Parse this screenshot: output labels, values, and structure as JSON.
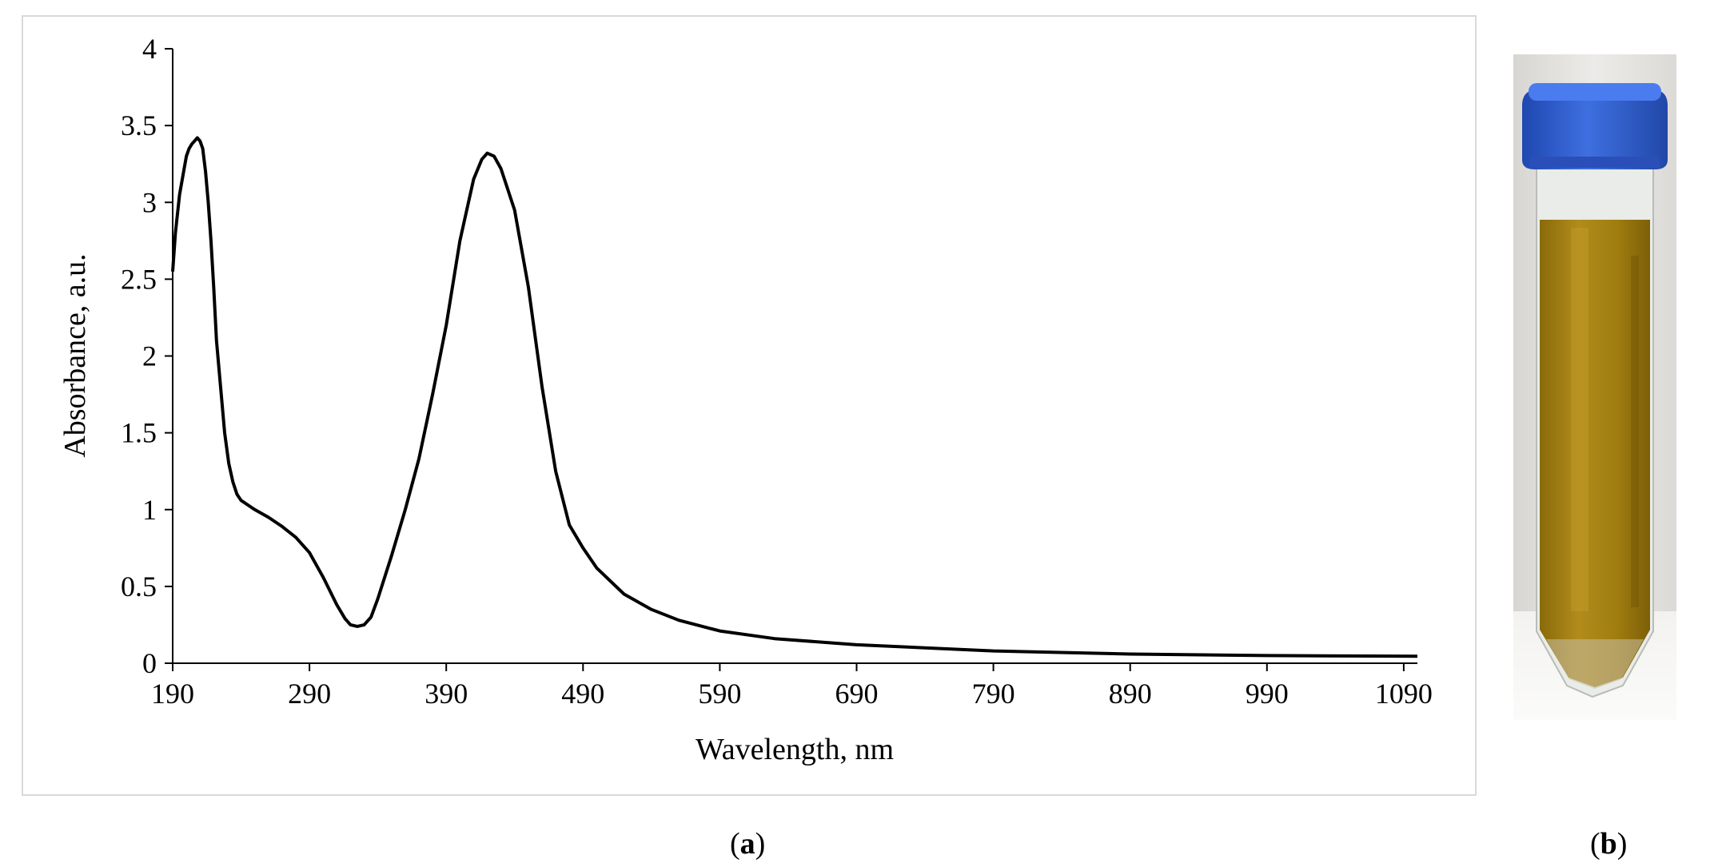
{
  "chart_data": {
    "type": "line",
    "title": "",
    "xlabel": "Wavelength, nm",
    "ylabel": "Absorbance, a.u.",
    "xlim": [
      190,
      1100
    ],
    "ylim": [
      0,
      4
    ],
    "x_ticks": [
      190,
      290,
      390,
      490,
      590,
      690,
      790,
      890,
      990,
      1090
    ],
    "y_ticks": [
      0,
      0.5,
      1,
      1.5,
      2,
      2.5,
      3,
      3.5,
      4
    ],
    "y_tick_labels": [
      "0",
      "0.5",
      "1",
      "1.5",
      "2",
      "2.5",
      "3",
      "3.5",
      "4"
    ],
    "grid": false,
    "legend": "none",
    "line_color": "#000000",
    "series": [
      {
        "points": [
          [
            190,
            2.55
          ],
          [
            192,
            2.8
          ],
          [
            195,
            3.05
          ],
          [
            198,
            3.2
          ],
          [
            200,
            3.3
          ],
          [
            202,
            3.35
          ],
          [
            204,
            3.38
          ],
          [
            206,
            3.4
          ],
          [
            208,
            3.42
          ],
          [
            210,
            3.4
          ],
          [
            212,
            3.35
          ],
          [
            214,
            3.2
          ],
          [
            216,
            3.0
          ],
          [
            218,
            2.75
          ],
          [
            220,
            2.45
          ],
          [
            222,
            2.1
          ],
          [
            225,
            1.8
          ],
          [
            228,
            1.5
          ],
          [
            231,
            1.3
          ],
          [
            234,
            1.18
          ],
          [
            237,
            1.1
          ],
          [
            240,
            1.06
          ],
          [
            245,
            1.03
          ],
          [
            250,
            1.0
          ],
          [
            260,
            0.95
          ],
          [
            270,
            0.89
          ],
          [
            280,
            0.82
          ],
          [
            290,
            0.72
          ],
          [
            300,
            0.56
          ],
          [
            310,
            0.38
          ],
          [
            316,
            0.29
          ],
          [
            320,
            0.25
          ],
          [
            325,
            0.24
          ],
          [
            330,
            0.25
          ],
          [
            335,
            0.3
          ],
          [
            340,
            0.42
          ],
          [
            350,
            0.7
          ],
          [
            360,
            1.0
          ],
          [
            370,
            1.33
          ],
          [
            380,
            1.75
          ],
          [
            390,
            2.2
          ],
          [
            400,
            2.75
          ],
          [
            410,
            3.15
          ],
          [
            416,
            3.28
          ],
          [
            420,
            3.32
          ],
          [
            425,
            3.3
          ],
          [
            430,
            3.22
          ],
          [
            440,
            2.95
          ],
          [
            450,
            2.45
          ],
          [
            460,
            1.8
          ],
          [
            470,
            1.25
          ],
          [
            480,
            0.9
          ],
          [
            490,
            0.75
          ],
          [
            500,
            0.62
          ],
          [
            520,
            0.45
          ],
          [
            540,
            0.35
          ],
          [
            560,
            0.28
          ],
          [
            590,
            0.21
          ],
          [
            630,
            0.16
          ],
          [
            690,
            0.12
          ],
          [
            790,
            0.08
          ],
          [
            890,
            0.06
          ],
          [
            990,
            0.05
          ],
          [
            1100,
            0.045
          ]
        ]
      }
    ]
  },
  "panels": {
    "a": {
      "label": "a"
    },
    "b": {
      "label": "b"
    }
  },
  "photo": {
    "cap_color": "#2f5fd0",
    "liquid_color": "#a07d10",
    "background_color": "#e8e6e2"
  }
}
